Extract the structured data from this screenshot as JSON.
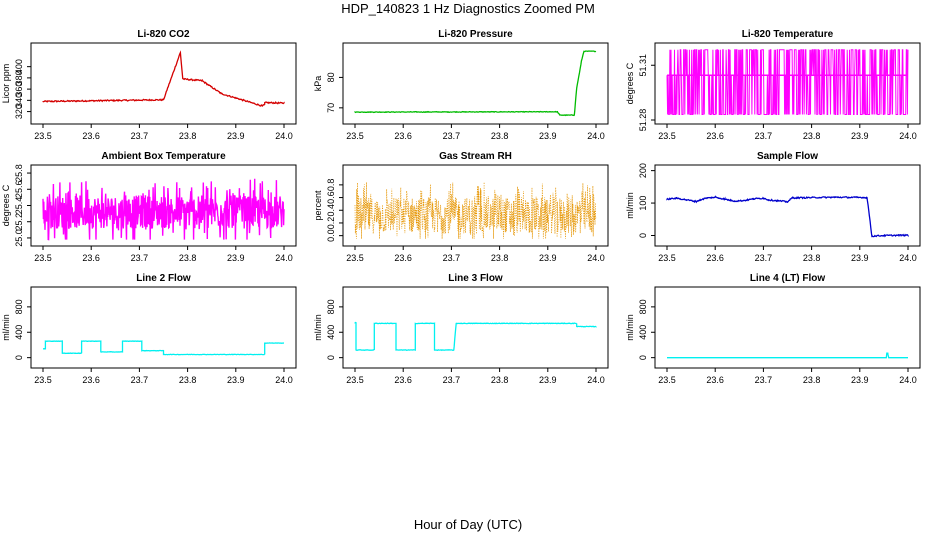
{
  "title": "HDP_140823  1 Hz Diagnostics Zoomed PM",
  "x_axis_title": "Hour of Day (UTC)",
  "chart_data": [
    {
      "type": "line",
      "title": "Li-820 CO2",
      "ylabel": "Licor ppm",
      "color": "#d40000",
      "xlim": [
        23.5,
        24.0
      ],
      "ylim": [
        305,
        435
      ],
      "x_ticks": [
        "23.5",
        "23.6",
        "23.7",
        "23.8",
        "23.9",
        "24.0"
      ],
      "y_ticks": [
        320,
        340,
        360,
        380,
        400
      ],
      "series": [
        {
          "x": [
            23.5,
            23.75,
            23.75,
            23.785,
            23.785,
            23.79,
            23.79,
            23.83,
            23.83,
            23.87,
            23.87,
            23.955,
            23.955,
            23.96,
            23.96,
            24.0
          ],
          "y": [
            338,
            341,
            341,
            425,
            425,
            378,
            378,
            375,
            375,
            352,
            352,
            330,
            330,
            332,
            336,
            335
          ],
          "noise": 1.2
        }
      ]
    },
    {
      "type": "line",
      "title": "Li-820 Pressure",
      "ylabel": "kPa",
      "color": "#00bb00",
      "xlim": [
        23.5,
        24.0
      ],
      "ylim": [
        66,
        90
      ],
      "x_ticks": [
        "23.5",
        "23.6",
        "23.7",
        "23.8",
        "23.9",
        "24.0"
      ],
      "y_ticks": [
        70,
        80
      ],
      "series": [
        {
          "x": [
            23.5,
            23.92,
            23.925,
            23.955,
            23.96,
            23.97,
            23.975,
            24.0
          ],
          "y": [
            68.6,
            68.7,
            67.6,
            67.6,
            76.5,
            85.5,
            88.6,
            88.6
          ],
          "noise": 0.1
        }
      ]
    },
    {
      "type": "line",
      "title": "Li-820 Temperature",
      "ylabel": "degrees C",
      "color": "#ff00ff",
      "xlim": [
        23.5,
        24.0
      ],
      "ylim": [
        51.28,
        51.32
      ],
      "x_ticks": [
        "23.5",
        "23.6",
        "23.7",
        "23.8",
        "23.9",
        "24.0"
      ],
      "y_ticks": [
        "51.28",
        "51.31"
      ],
      "levels": [
        51.283,
        51.3045,
        51.3185
      ]
    },
    {
      "type": "line",
      "title": "Ambient Box Temperature",
      "ylabel": "degrees C",
      "color": "#ff00ff",
      "xlim": [
        23.5,
        24.0
      ],
      "ylim": [
        24.95,
        25.85
      ],
      "x_ticks": [
        "23.5",
        "23.6",
        "23.7",
        "23.8",
        "23.9",
        "24.0"
      ],
      "y_ticks": [
        "25.0",
        "25.2",
        "25.4",
        "25.6",
        "25.8"
      ],
      "range": [
        24.98,
        25.8
      ],
      "center": 25.32
    },
    {
      "type": "scatter",
      "title": "Gas Stream RH",
      "ylabel": "percent",
      "color": "#e69500",
      "xlim": [
        23.5,
        24.0
      ],
      "ylim": [
        -0.1,
        1.05
      ],
      "x_ticks": [
        "23.5",
        "23.6",
        "23.7",
        "23.8",
        "23.9",
        "24.0"
      ],
      "y_ticks": [
        "0.0",
        "0.2",
        "0.4",
        "0.6",
        "0.8"
      ],
      "range": [
        -0.05,
        1.0
      ],
      "center": 0.32
    },
    {
      "type": "line",
      "title": "Sample Flow",
      "ylabel": "ml/min",
      "color": "#0000cc",
      "xlim": [
        23.5,
        24.0
      ],
      "ylim": [
        -20,
        205
      ],
      "x_ticks": [
        "23.5",
        "23.6",
        "23.7",
        "23.8",
        "23.9",
        "24.0"
      ],
      "y_ticks": [
        0,
        100,
        200
      ],
      "series": [
        {
          "x": [
            23.5,
            23.52,
            23.54,
            23.56,
            23.58,
            23.6,
            23.62,
            23.64,
            23.66,
            23.68,
            23.7,
            23.71,
            23.75,
            23.76,
            23.85,
            23.915,
            23.92,
            23.925,
            23.95,
            24.0
          ],
          "y": [
            112,
            115,
            110,
            105,
            115,
            118,
            112,
            106,
            108,
            113,
            115,
            110,
            104,
            116,
            118,
            117,
            60,
            -2,
            0,
            1
          ],
          "noise": 2
        }
      ]
    },
    {
      "type": "line",
      "title": "Line 2 Flow",
      "ylabel": "ml/min",
      "color": "#00f0f0",
      "xlim": [
        23.5,
        24.0
      ],
      "ylim": [
        -100,
        1050
      ],
      "x_ticks": [
        "23.5",
        "23.6",
        "23.7",
        "23.8",
        "23.9",
        "24.0"
      ],
      "y_ticks": [
        0,
        400,
        800
      ],
      "series": [
        {
          "x": [
            23.5,
            23.505,
            23.505,
            23.54,
            23.54,
            23.58,
            23.58,
            23.62,
            23.62,
            23.665,
            23.665,
            23.705,
            23.705,
            23.75,
            23.75,
            23.96,
            23.96,
            24.0
          ],
          "y": [
            140,
            140,
            260,
            260,
            70,
            70,
            260,
            260,
            90,
            90,
            260,
            260,
            110,
            110,
            50,
            50,
            230,
            230
          ],
          "noise": 3
        }
      ]
    },
    {
      "type": "line",
      "title": "Line 3 Flow",
      "ylabel": "ml/min",
      "color": "#00f0f0",
      "xlim": [
        23.5,
        24.0
      ],
      "ylim": [
        -100,
        1050
      ],
      "x_ticks": [
        "23.5",
        "23.6",
        "23.7",
        "23.8",
        "23.9",
        "24.0"
      ],
      "y_ticks": [
        0,
        400,
        800
      ],
      "series": [
        {
          "x": [
            23.5,
            23.502,
            23.502,
            23.54,
            23.54,
            23.585,
            23.585,
            23.625,
            23.625,
            23.665,
            23.665,
            23.705,
            23.705,
            23.71,
            23.96,
            23.96,
            24.0
          ],
          "y": [
            550,
            550,
            120,
            120,
            540,
            540,
            120,
            120,
            540,
            540,
            120,
            120,
            120,
            540,
            540,
            490,
            490
          ],
          "noise": 4
        }
      ]
    },
    {
      "type": "line",
      "title": "Line 4 (LT) Flow",
      "ylabel": "ml/min",
      "color": "#00f0f0",
      "xlim": [
        23.5,
        24.0
      ],
      "ylim": [
        -100,
        1050
      ],
      "x_ticks": [
        "23.5",
        "23.6",
        "23.7",
        "23.8",
        "23.9",
        "24.0"
      ],
      "y_ticks": [
        0,
        400,
        800
      ],
      "series": [
        {
          "x": [
            23.5,
            23.955,
            23.956,
            23.958,
            23.96,
            24.0
          ],
          "y": [
            0,
            0,
            70,
            70,
            0,
            0
          ],
          "noise": 0
        }
      ]
    }
  ]
}
